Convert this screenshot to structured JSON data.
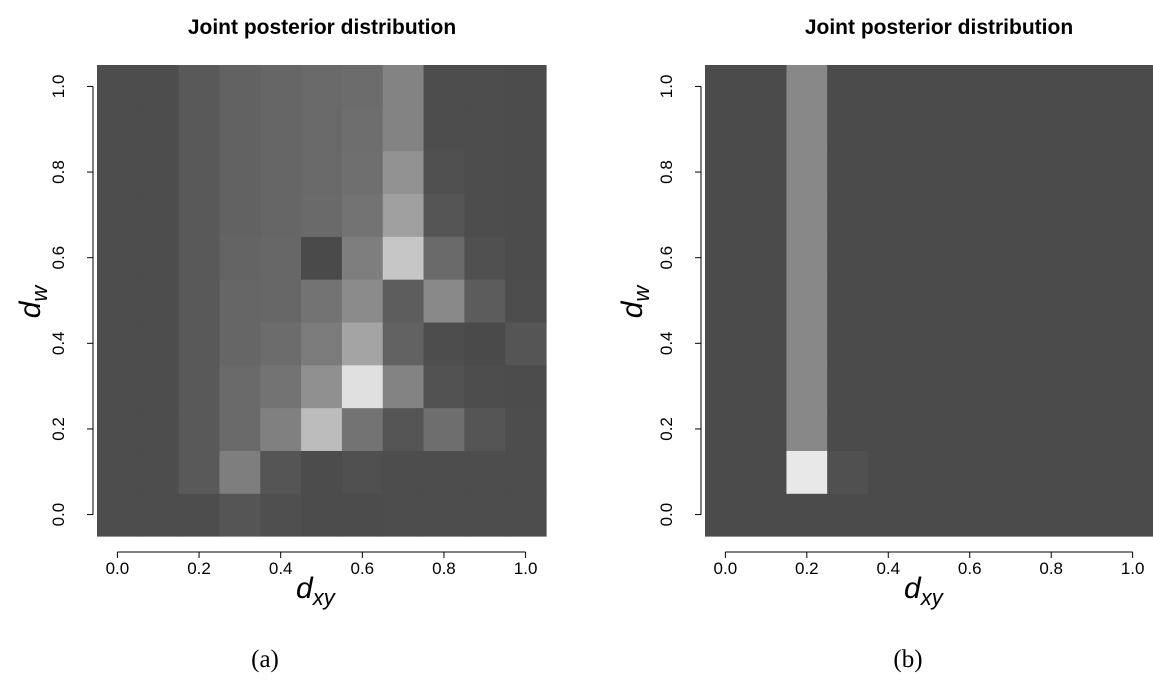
{
  "chart_data": [
    {
      "type": "heatmap",
      "title": "Joint posterior distribution",
      "xlabel": "d",
      "xlabel_sub": "xy",
      "ylabel": "d",
      "ylabel_sub": "w",
      "x": [
        0.0,
        0.1,
        0.2,
        0.3,
        0.4,
        0.5,
        0.6,
        0.7,
        0.8,
        0.9,
        1.0
      ],
      "y": [
        0.0,
        0.1,
        0.2,
        0.3,
        0.4,
        0.5,
        0.6,
        0.7,
        0.8,
        0.9,
        1.0
      ],
      "xlim": [
        -0.05,
        1.05
      ],
      "ylim": [
        -0.05,
        1.05
      ],
      "xticks": [
        "0.0",
        "0.2",
        "0.4",
        "0.6",
        "0.8",
        "1.0"
      ],
      "yticks": [
        "0.0",
        "0.2",
        "0.4",
        "0.6",
        "0.8",
        "1.0"
      ],
      "colors": {
        "low": "#454545",
        "high": "#e8e8e8"
      },
      "z": [
        [
          0.05,
          0.05,
          0.05,
          0.1,
          0.06,
          0.04,
          0.04,
          0.05,
          0.05,
          0.05,
          0.05
        ],
        [
          0.05,
          0.05,
          0.12,
          0.35,
          0.1,
          0.04,
          0.07,
          0.05,
          0.05,
          0.05,
          0.05
        ],
        [
          0.05,
          0.05,
          0.12,
          0.22,
          0.36,
          0.73,
          0.28,
          0.1,
          0.25,
          0.1,
          0.05
        ],
        [
          0.05,
          0.05,
          0.12,
          0.22,
          0.28,
          0.46,
          0.95,
          0.38,
          0.08,
          0.05,
          0.04
        ],
        [
          0.05,
          0.05,
          0.12,
          0.2,
          0.24,
          0.33,
          0.58,
          0.18,
          0.05,
          0.03,
          0.1
        ],
        [
          0.05,
          0.05,
          0.12,
          0.2,
          0.21,
          0.28,
          0.43,
          0.15,
          0.42,
          0.14,
          0.05
        ],
        [
          0.05,
          0.05,
          0.12,
          0.19,
          0.21,
          0.03,
          0.35,
          0.79,
          0.23,
          0.07,
          0.04
        ],
        [
          0.05,
          0.05,
          0.12,
          0.18,
          0.2,
          0.23,
          0.28,
          0.55,
          0.1,
          0.05,
          0.04
        ],
        [
          0.05,
          0.05,
          0.12,
          0.18,
          0.2,
          0.22,
          0.26,
          0.47,
          0.07,
          0.05,
          0.04
        ],
        [
          0.05,
          0.05,
          0.12,
          0.18,
          0.2,
          0.22,
          0.25,
          0.38,
          0.05,
          0.05,
          0.04
        ],
        [
          0.05,
          0.05,
          0.12,
          0.18,
          0.2,
          0.22,
          0.24,
          0.38,
          0.05,
          0.05,
          0.04
        ]
      ],
      "caption": "(a)"
    },
    {
      "type": "heatmap",
      "title": "Joint posterior distribution",
      "xlabel": "d",
      "xlabel_sub": "xy",
      "ylabel": "d",
      "ylabel_sub": "w",
      "x": [
        0.0,
        0.1,
        0.2,
        0.3,
        0.4,
        0.5,
        0.6,
        0.7,
        0.8,
        0.9,
        1.0
      ],
      "y": [
        0.0,
        0.1,
        0.2,
        0.3,
        0.4,
        0.5,
        0.6,
        0.7,
        0.8,
        0.9,
        1.0
      ],
      "xlim": [
        -0.05,
        1.05
      ],
      "ylim": [
        -0.05,
        1.05
      ],
      "xticks": [
        "0.0",
        "0.2",
        "0.4",
        "0.6",
        "0.8",
        "1.0"
      ],
      "yticks": [
        "0.0",
        "0.2",
        "0.4",
        "0.6",
        "0.8",
        "1.0"
      ],
      "colors": {
        "low": "#4b4b4b",
        "high": "#e8e8e8"
      },
      "z": [
        [
          0,
          0,
          0,
          0,
          0,
          0,
          0,
          0,
          0,
          0,
          0
        ],
        [
          0,
          0,
          1.0,
          0.03,
          0,
          0,
          0,
          0,
          0,
          0,
          0
        ],
        [
          0,
          0,
          0.39,
          0,
          0,
          0,
          0,
          0,
          0,
          0,
          0
        ],
        [
          0,
          0,
          0.39,
          0,
          0,
          0,
          0,
          0,
          0,
          0,
          0
        ],
        [
          0,
          0,
          0.39,
          0,
          0,
          0,
          0,
          0,
          0,
          0,
          0
        ],
        [
          0,
          0,
          0.39,
          0,
          0,
          0,
          0,
          0,
          0,
          0,
          0
        ],
        [
          0,
          0,
          0.39,
          0,
          0,
          0,
          0,
          0,
          0,
          0,
          0
        ],
        [
          0,
          0,
          0.39,
          0,
          0,
          0,
          0,
          0,
          0,
          0,
          0
        ],
        [
          0,
          0,
          0.39,
          0,
          0,
          0,
          0,
          0,
          0,
          0,
          0
        ],
        [
          0,
          0,
          0.39,
          0,
          0,
          0,
          0,
          0,
          0,
          0,
          0
        ],
        [
          0,
          0,
          0.39,
          0,
          0,
          0,
          0,
          0,
          0,
          0,
          0
        ]
      ],
      "caption": "(b)"
    }
  ]
}
